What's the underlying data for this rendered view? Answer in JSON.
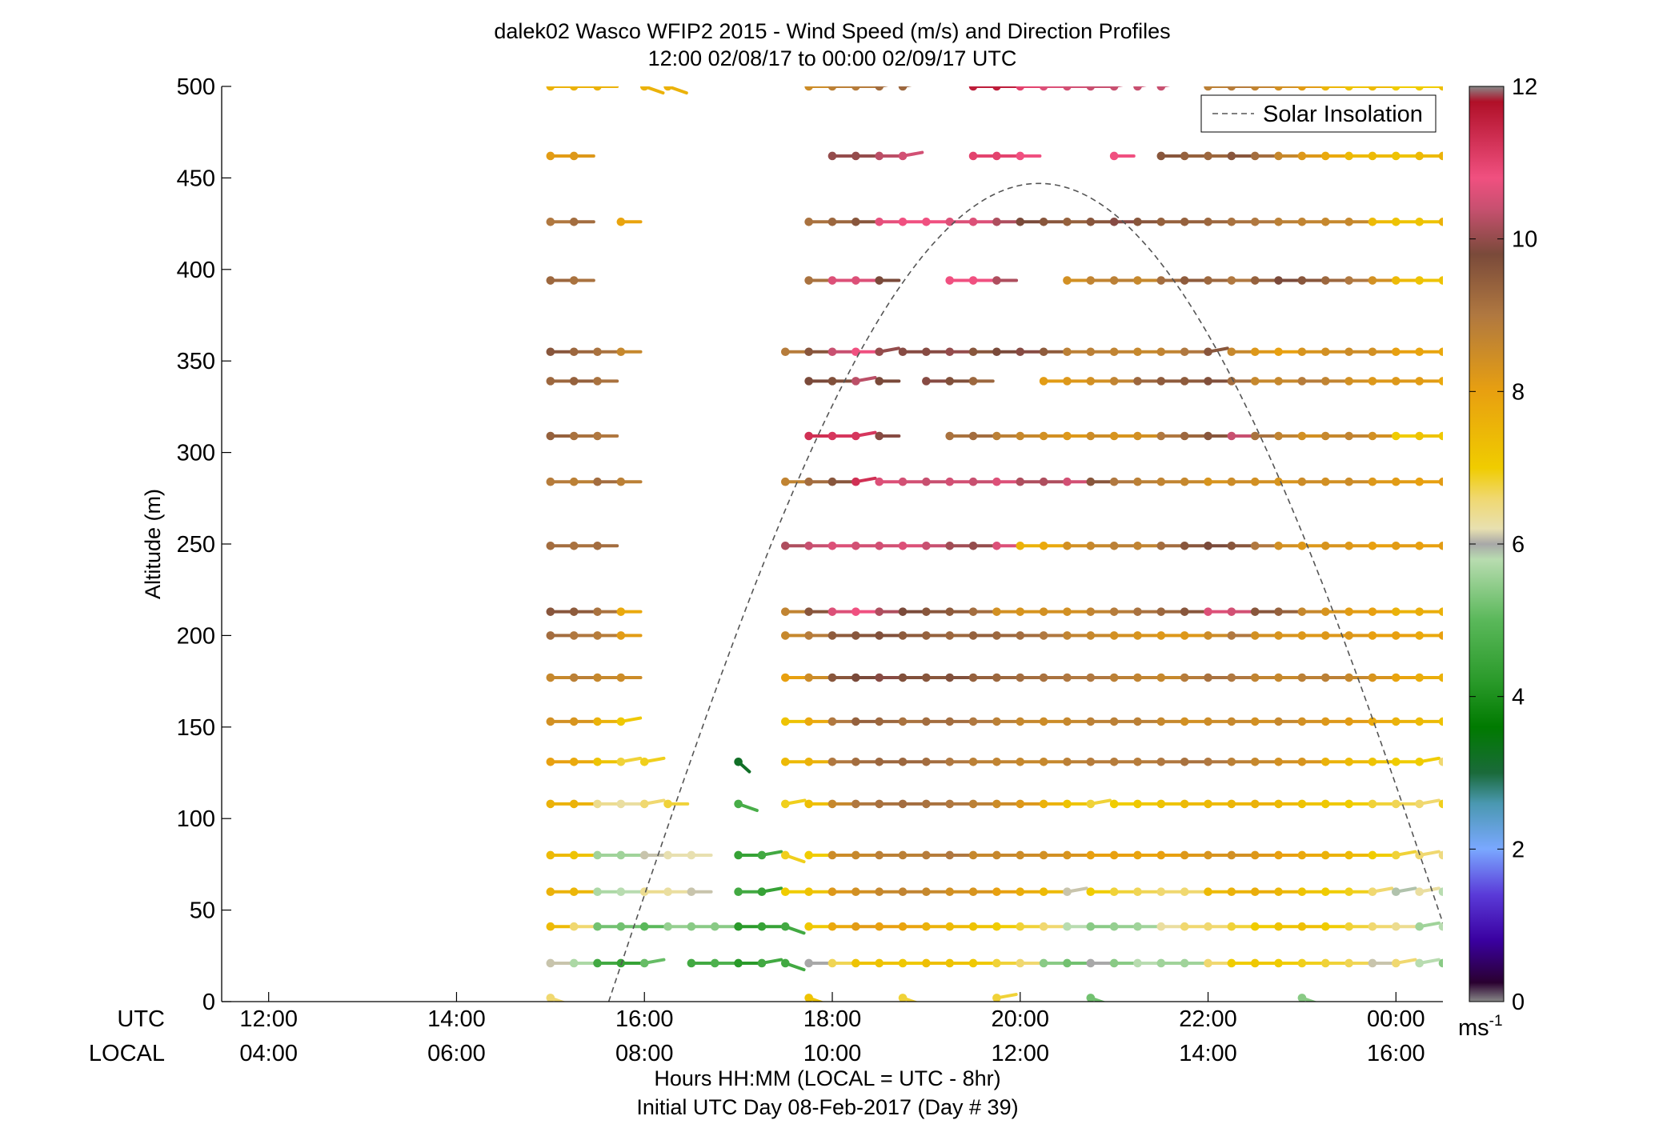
{
  "chart_data": {
    "type": "wind-barb-profile",
    "title": "dalek02 Wasco WFIP2 2015 - Wind Speed (m/s) and Direction Profiles",
    "subtitle": "12:00 02/08/17 to 00:00 02/09/17  UTC",
    "ylabel": "Altitude (m)",
    "xlabel": "Hours HH:MM  (LOCAL = UTC - 8hr)",
    "xlabel2": "Initial UTC Day 08-Feb-2017 (Day # 39)",
    "row_label_utc": "UTC",
    "row_label_local": "LOCAL",
    "xlim_hours": [
      11.5,
      24.5
    ],
    "ylim": [
      0,
      500
    ],
    "xticks_hours": [
      12,
      14,
      16,
      18,
      20,
      22,
      24
    ],
    "xtick_labels_utc": [
      "12:00",
      "14:00",
      "16:00",
      "18:00",
      "20:00",
      "22:00",
      "00:00"
    ],
    "xtick_labels_local": [
      "04:00",
      "06:00",
      "08:00",
      "10:00",
      "12:00",
      "14:00",
      "16:00"
    ],
    "yticks": [
      0,
      50,
      100,
      150,
      200,
      250,
      300,
      350,
      400,
      450,
      500
    ],
    "ytick_labels": [
      "0",
      "50",
      "100",
      "150",
      "200",
      "250",
      "300",
      "350",
      "400",
      "450",
      "500"
    ],
    "legend": {
      "label": "Solar Insolation",
      "location": "top-right"
    },
    "solar_insolation": {
      "start_hour": 15.62,
      "end_hour": 24.5,
      "peak_hour": 20.2,
      "peak_altitude": 447,
      "end_altitude": 55
    },
    "colorbar": {
      "unit": "ms",
      "unit_sup": "-1",
      "range": [
        0,
        12
      ],
      "ticks": [
        "0",
        "2",
        "4",
        "6",
        "8",
        "10",
        "12"
      ],
      "stops": [
        [
          0.0,
          "#888888"
        ],
        [
          0.25,
          "#2a0030"
        ],
        [
          0.8,
          "#3a00a0"
        ],
        [
          1.4,
          "#5a3ad8"
        ],
        [
          2.0,
          "#7aa8ff"
        ],
        [
          2.6,
          "#4a98b0"
        ],
        [
          3.0,
          "#1a6a3a"
        ],
        [
          3.6,
          "#007a00"
        ],
        [
          4.2,
          "#2a9a2a"
        ],
        [
          5.0,
          "#5ab85a"
        ],
        [
          5.8,
          "#b8dcb0"
        ],
        [
          6.0,
          "#a8a8a8"
        ],
        [
          6.2,
          "#e8e0b0"
        ],
        [
          6.6,
          "#f0d870"
        ],
        [
          7.0,
          "#f0cc00"
        ],
        [
          8.0,
          "#e8a010"
        ],
        [
          9.0,
          "#b07840"
        ],
        [
          9.8,
          "#7a4a3a"
        ],
        [
          10.4,
          "#c85070"
        ],
        [
          10.8,
          "#f05080"
        ],
        [
          11.8,
          "#b01028"
        ],
        [
          12.0,
          "#888888"
        ]
      ]
    },
    "altitudes": [
      500,
      462,
      426,
      394,
      355,
      339,
      309,
      284,
      249,
      213,
      200,
      177,
      153,
      131,
      108,
      80,
      60,
      41,
      21,
      2
    ],
    "start_hour": 15.0,
    "step_hour": 0.25,
    "barb_length_hours": 0.21,
    "direction_slopes": {
      "f": 0.0,
      "u": -0.18,
      "d": 0.35,
      "D": 0.9
    },
    "rows": [
      [
        "7.6f",
        "7.6f",
        "7.6f",
        "_",
        "7.6d",
        "7.6d",
        "_",
        "_",
        "_",
        "_",
        "_",
        "8.5f",
        "8.8f",
        "8.9f",
        "9.2u",
        "9.3u",
        "_",
        "_",
        "11.6f",
        "11.6f",
        "11.0f",
        "10.6f",
        "10.5f",
        "10.4f",
        "10.4u",
        "10.4u",
        "10.4u",
        "_",
        "8.8f",
        "8.9f",
        "8.7f",
        "8.4f",
        "8.1f",
        "7.5f",
        "7.2f",
        "7.4f",
        "7.0f",
        "7.0f",
        "7.3f",
        "6.9u",
        "7.0u"
      ],
      [
        "8.1f",
        "8.2f",
        "_",
        "_",
        "_",
        "_",
        "_",
        "_",
        "_",
        "_",
        "_",
        "_",
        "10.0f",
        "10.0f",
        "10.3f",
        "10.5u",
        "_",
        "_",
        "11.0f",
        "11.0f",
        "10.8f",
        "_",
        "_",
        "_",
        "10.8f",
        "_",
        "9.6f",
        "9.4f",
        "9.3f",
        "9.6f",
        "9.2f",
        "8.6f",
        "8.2f",
        "7.8f",
        "7.4f",
        "7.4f",
        "7.2f",
        "7.4f",
        "7.6f",
        "7.7f",
        "7.8f"
      ],
      [
        "9.0f",
        "9.2f",
        "_",
        "7.9f",
        "_",
        "_",
        "_",
        "_",
        "_",
        "_",
        "_",
        "9.1f",
        "9.3f",
        "9.6f",
        "10.7f",
        "10.8f",
        "10.8f",
        "10.6f",
        "10.6f",
        "10.2f",
        "9.8f",
        "9.6f",
        "9.4f",
        "9.6f",
        "9.9f",
        "9.6f",
        "9.4f",
        "9.4f",
        "9.3f",
        "9.1f",
        "9.0f",
        "8.8f",
        "8.7f",
        "8.6f",
        "8.6f",
        "7.4f",
        "7.2f",
        "7.2f",
        "7.6f",
        "7.4u",
        "7.5u"
      ],
      [
        "9.3f",
        "9.1f",
        "_",
        "_",
        "_",
        "_",
        "_",
        "_",
        "_",
        "_",
        "_",
        "9.1f",
        "10.6f",
        "10.6f",
        "9.8f",
        "_",
        "_",
        "10.8f",
        "10.8f",
        "10.2f",
        "_",
        "_",
        "8.4f",
        "8.7f",
        "8.8f",
        "8.6f",
        "9.2f",
        "9.5f",
        "9.3f",
        "9.0f",
        "9.4f",
        "9.8f",
        "9.6f",
        "9.3f",
        "9.0f",
        "8.4f",
        "7.4f",
        "7.2f",
        "7.2f",
        "6.8f",
        "6.7f"
      ],
      [
        "9.6f",
        "9.3f",
        "9.1f",
        "8.6f",
        "_",
        "_",
        "_",
        "_",
        "_",
        "_",
        "8.9f",
        "9.6f",
        "10.4f",
        "10.8f",
        "10.0u",
        "9.9f",
        "9.9f",
        "10.0f",
        "9.6f",
        "9.8f",
        "9.9f",
        "9.5f",
        "8.8f",
        "8.8f",
        "8.7f",
        "8.6f",
        "8.7f",
        "9.0f",
        "9.6u",
        "8.6f",
        "8.2f",
        "8.0f",
        "8.3f",
        "8.4f",
        "8.5f",
        "8.4f",
        "8.0f",
        "7.9f",
        "7.8f",
        "7.6f",
        "7.8u"
      ],
      [
        "9.3f",
        "9.4f",
        "9.1f",
        "_",
        "_",
        "_",
        "_",
        "_",
        "_",
        "_",
        "_",
        "9.8f",
        "9.7f",
        "10.3u",
        "9.8f",
        "_",
        "9.9f",
        "9.7f",
        "9.3f",
        "_",
        "_",
        "8.1f",
        "8.2f",
        "8.4f",
        "8.7f",
        "9.3f",
        "9.5f",
        "9.5f",
        "9.7f",
        "9.2f",
        "8.6f",
        "8.6f",
        "8.9f",
        "8.7f",
        "8.4f",
        "8.2f",
        "8.2f",
        "8.1f",
        "7.8f",
        "7.6f",
        "7.7u"
      ],
      [
        "9.4f",
        "9.1f",
        "9.0f",
        "_",
        "_",
        "_",
        "_",
        "_",
        "_",
        "_",
        "_",
        "11.3f",
        "11.2f",
        "11.2u",
        "9.9f",
        "_",
        "_",
        "9.1f",
        "9.2f",
        "8.8f",
        "8.6f",
        "8.4f",
        "8.2f",
        "8.5f",
        "8.3f",
        "8.4f",
        "9.0f",
        "9.3f",
        "9.6f",
        "10.4f",
        "9.1f",
        "8.7f",
        "8.4f",
        "8.6f",
        "8.7f",
        "8.4f",
        "7.0f",
        "7.2f",
        "7.1f",
        "7.1f",
        "7.2u"
      ],
      [
        "8.9f",
        "8.8f",
        "9.2f",
        "8.8f",
        "_",
        "_",
        "_",
        "_",
        "_",
        "_",
        "8.7f",
        "9.2f",
        "9.6f",
        "11.3u",
        "10.6f",
        "10.5f",
        "10.4f",
        "10.5f",
        "10.4f",
        "10.6f",
        "10.2f",
        "10.2f",
        "10.5f",
        "9.6f",
        "9.0f",
        "8.8f",
        "8.7f",
        "8.6f",
        "8.3f",
        "8.5f",
        "8.4f",
        "8.3f",
        "8.5f",
        "8.4f",
        "8.5f",
        "8.2f",
        "8.1f",
        "8.0f",
        "8.1f",
        "8.1f",
        "8.2f"
      ],
      [
        "9.2f",
        "9.1f",
        "9.2f",
        "_",
        "_",
        "_",
        "_",
        "_",
        "_",
        "_",
        "10.2f",
        "10.4f",
        "10.6f",
        "10.5f",
        "10.5f",
        "10.6f",
        "10.4f",
        "10.1f",
        "10.0f",
        "10.6f",
        "7.6f",
        "7.8f",
        "8.4f",
        "8.6f",
        "8.8f",
        "8.7f",
        "9.2f",
        "9.6f",
        "9.8f",
        "9.6f",
        "9.0f",
        "8.4f",
        "8.2f",
        "8.3f",
        "8.2f",
        "8.0f",
        "8.1f",
        "8.0f",
        "8.1f",
        "8.2f",
        "8.1f"
      ],
      [
        "9.6f",
        "9.5f",
        "9.1f",
        "7.8f",
        "_",
        "_",
        "_",
        "_",
        "_",
        "_",
        "8.7f",
        "9.6f",
        "10.6f",
        "10.8f",
        "10.2f",
        "9.8f",
        "9.6f",
        "9.5f",
        "9.2f",
        "8.4f",
        "8.3f",
        "8.4f",
        "8.4f",
        "8.7f",
        "8.9f",
        "9.1f",
        "9.3f",
        "9.6f",
        "10.6f",
        "10.5f",
        "9.6f",
        "9.4f",
        "8.6f",
        "8.3f",
        "8.1f",
        "8.0f",
        "7.6f",
        "7.7f",
        "7.6f",
        "7.8f",
        "7.8f"
      ],
      [
        "9.2f",
        "9.0f",
        "8.9f",
        "8.1f",
        "_",
        "_",
        "_",
        "_",
        "_",
        "_",
        "8.6f",
        "8.9f",
        "9.5f",
        "9.6f",
        "9.7f",
        "9.5f",
        "9.4f",
        "9.3f",
        "9.4f",
        "9.3f",
        "9.2f",
        "9.0f",
        "8.7f",
        "8.6f",
        "8.4f",
        "8.3f",
        "8.2f",
        "8.2f",
        "8.5f",
        "9.0f",
        "8.4f",
        "8.3f",
        "8.2f",
        "8.2f",
        "8.2f",
        "8.0f",
        "8.0f",
        "7.8f",
        "8.0f",
        "7.7f",
        "7.9f"
      ],
      [
        "8.6f",
        "8.8f",
        "8.6f",
        "8.5f",
        "_",
        "_",
        "_",
        "_",
        "_",
        "_",
        "8.0f",
        "8.5f",
        "9.6f",
        "9.8f",
        "9.9f",
        "9.7f",
        "9.6f",
        "9.7f",
        "9.4f",
        "9.3f",
        "9.2f",
        "9.1f",
        "9.0f",
        "9.0f",
        "8.8f",
        "8.7f",
        "8.6f",
        "8.9f",
        "9.1f",
        "9.0f",
        "8.7f",
        "8.6f",
        "8.8f",
        "8.8f",
        "8.6f",
        "8.3f",
        "7.9f",
        "7.7f",
        "7.6f",
        "7.7f",
        "7.8u"
      ],
      [
        "8.4f",
        "8.3f",
        "7.6f",
        "7.1u",
        "_",
        "_",
        "_",
        "_",
        "_",
        "_",
        "7.2f",
        "7.8f",
        "9.0f",
        "9.4f",
        "9.3f",
        "9.1f",
        "9.2f",
        "9.2f",
        "9.0f",
        "8.8f",
        "8.6f",
        "8.5f",
        "8.6f",
        "8.8f",
        "8.8f",
        "8.8f",
        "8.6f",
        "8.4f",
        "8.5f",
        "8.6f",
        "8.4f",
        "8.6f",
        "8.4f",
        "8.2f",
        "8.1f",
        "7.8f",
        "7.6f",
        "7.4f",
        "7.2f",
        "6.7f",
        "6.9u"
      ],
      [
        "8.0f",
        "7.8f",
        "7.2f",
        "6.8u",
        "6.9u",
        "_",
        "_",
        "_",
        "3.2D",
        "_",
        "7.4f",
        "7.6f",
        "9.0f",
        "9.2f",
        "9.3f",
        "9.3f",
        "9.2f",
        "9.0f",
        "8.8f",
        "8.7f",
        "8.6f",
        "8.6f",
        "8.8f",
        "8.9f",
        "8.9f",
        "8.9f",
        "9.0f",
        "9.1f",
        "9.0f",
        "8.8f",
        "8.6f",
        "8.4f",
        "8.3f",
        "7.6f",
        "7.4f",
        "7.2f",
        "7.0f",
        "7.0u",
        "6.6u",
        "6.4u",
        "6.4u"
      ],
      [
        "7.6f",
        "7.6f",
        "6.4f",
        "6.3f",
        "6.6u",
        "6.8f",
        "_",
        "_",
        "4.7d",
        "_",
        "6.9u",
        "7.3f",
        "8.6f",
        "9.0f",
        "9.1f",
        "9.2f",
        "9.1f",
        "9.0f",
        "8.8f",
        "8.5f",
        "8.2f",
        "7.6f",
        "7.2f",
        "6.8u",
        "7.0f",
        "7.1f",
        "7.2f",
        "7.4f",
        "7.4f",
        "7.5f",
        "7.6f",
        "7.4f",
        "7.2f",
        "7.1f",
        "7.0f",
        "6.8f",
        "6.7f",
        "6.6u",
        "6.9u",
        "6.3u",
        "6.1u"
      ],
      [
        "7.4f",
        "7.2f",
        "5.6f",
        "5.6f",
        "6.1f",
        "6.2f",
        "6.2f",
        "_",
        "4.4f",
        "4.6u",
        "6.9d",
        "7.0f",
        "8.5f",
        "8.6f",
        "8.8f",
        "8.8f",
        "8.9f",
        "9.0f",
        "8.6f",
        "8.6f",
        "8.5f",
        "8.4f",
        "8.3f",
        "8.0f",
        "8.0f",
        "7.9f",
        "8.0f",
        "8.2f",
        "8.3f",
        "8.4f",
        "8.2f",
        "8.0f",
        "7.8f",
        "7.6f",
        "7.4f",
        "7.0f",
        "6.8u",
        "6.6u",
        "6.5u",
        "5.6u",
        "5.6d"
      ],
      [
        "7.6f",
        "7.5f",
        "5.7f",
        "5.8f",
        "6.4f",
        "6.3f",
        "6.1f",
        "_",
        "4.6f",
        "4.4u",
        "7.0f",
        "7.2f",
        "8.2f",
        "8.4f",
        "8.6f",
        "8.7f",
        "8.6f",
        "8.4f",
        "8.3f",
        "8.0f",
        "7.7f",
        "7.4f",
        "6.1u",
        "7.0f",
        "6.8f",
        "6.7f",
        "6.6f",
        "6.6f",
        "7.4f",
        "7.6f",
        "7.7f",
        "7.5f",
        "7.2f",
        "7.0f",
        "6.9f",
        "6.6u",
        "5.9u",
        "6.3u",
        "5.8u",
        "5.4u",
        "5.3d"
      ],
      [
        "7.4f",
        "6.6f",
        "5.2f",
        "5.2f",
        "5.0f",
        "5.5f",
        "5.4f",
        "5.4f",
        "4.2f",
        "4.4f",
        "4.6d",
        "7.1f",
        "7.8f",
        "8.1f",
        "8.0f",
        "7.9f",
        "7.6f",
        "7.4f",
        "7.2f",
        "7.0f",
        "6.8f",
        "6.6f",
        "5.8f",
        "5.4f",
        "5.5f",
        "5.6f",
        "6.3f",
        "6.6f",
        "6.6f",
        "6.8f",
        "7.0f",
        "7.2f",
        "7.3f",
        "7.0f",
        "6.8f",
        "6.6f",
        "6.4f",
        "5.6u",
        "5.8u",
        "5.2u",
        "5.1d"
      ],
      [
        "6.1f",
        "5.7f",
        "4.6f",
        "4.4f",
        "5.1u",
        "_",
        "4.6f",
        "4.8f",
        "4.2f",
        "4.6u",
        "4.6d",
        "6.0f",
        "6.7f",
        "7.2f",
        "7.2f",
        "7.1f",
        "7.3f",
        "7.2f",
        "7.1f",
        "6.8f",
        "6.6f",
        "5.4f",
        "5.2f",
        "6.0f",
        "5.4f",
        "5.8f",
        "5.6f",
        "5.6f",
        "6.6f",
        "7.0f",
        "7.1f",
        "7.0f",
        "6.9f",
        "6.8f",
        "6.7f",
        "6.1f",
        "6.6u",
        "5.8u",
        "5.4u",
        "4.8u",
        "5.0d"
      ],
      [
        "6.6d",
        "_",
        "_",
        "_",
        "_",
        "_",
        "_",
        "_",
        "_",
        "_",
        "_",
        "7.2d",
        "_",
        "_",
        "_",
        "6.8d",
        "_",
        "_",
        "_",
        "6.8u",
        "_",
        "_",
        "_",
        "5.2d",
        "_",
        "_",
        "_",
        "_",
        "_",
        "_",
        "_",
        "_",
        "5.4d",
        "_",
        "_",
        "_",
        "_",
        "_",
        "_",
        "_",
        "_"
      ]
    ]
  }
}
